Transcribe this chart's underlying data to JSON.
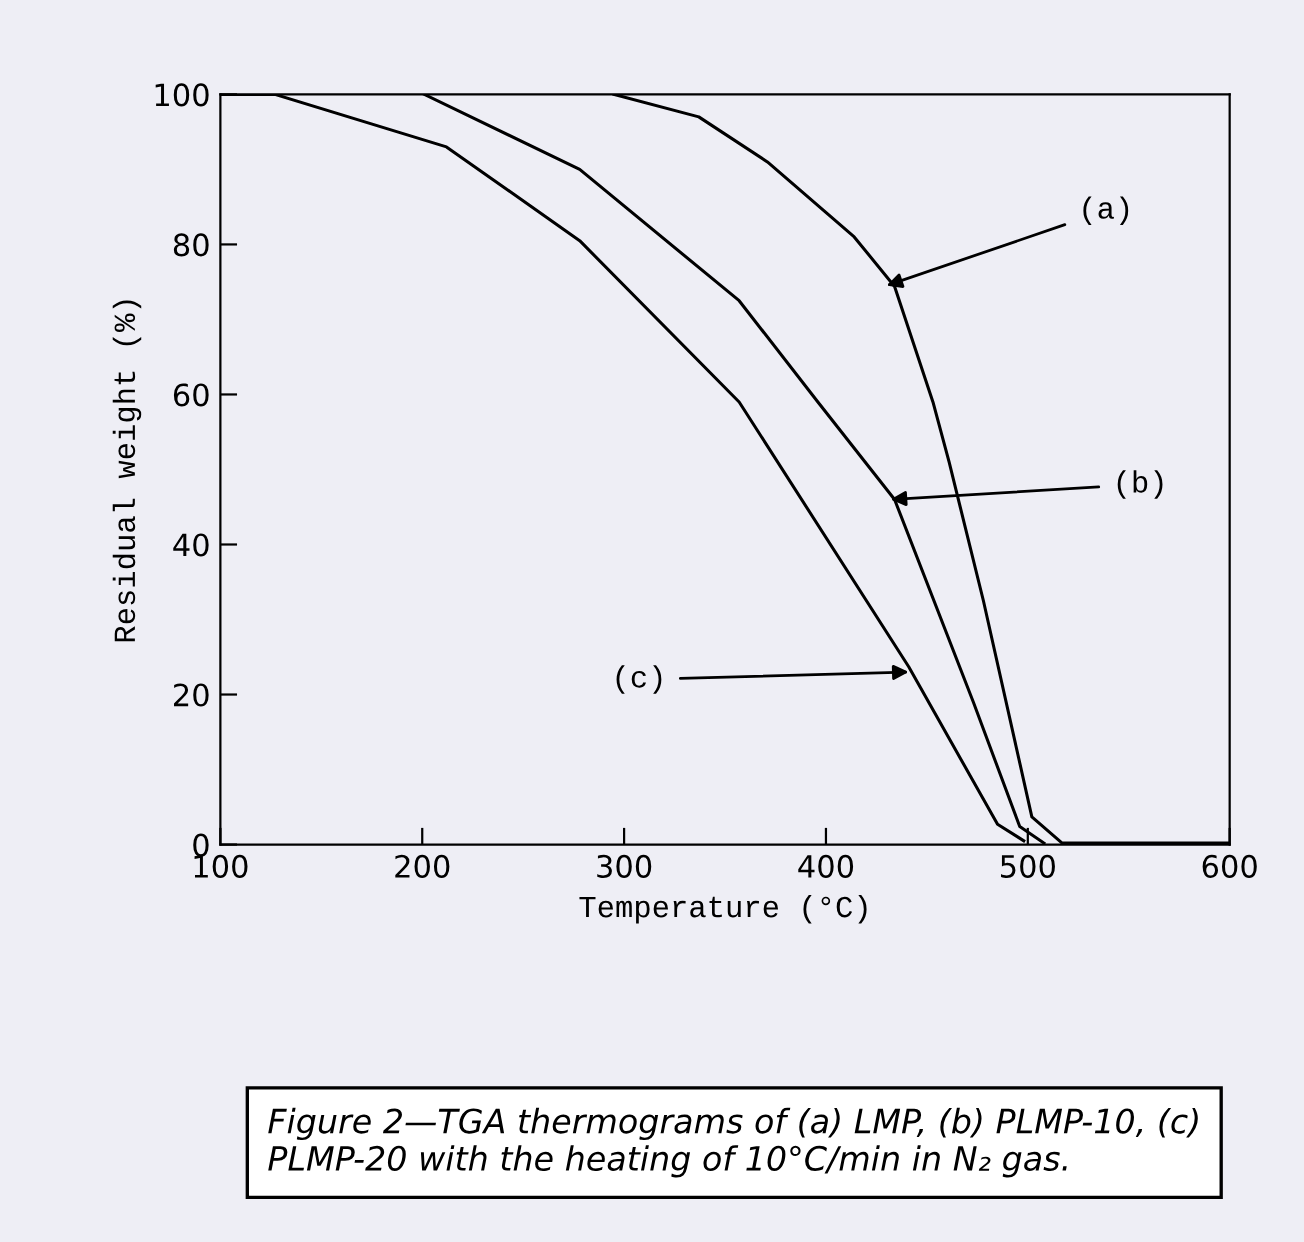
{
  "chart_data": {
    "type": "line",
    "xlabel": "Temperature (°C)",
    "ylabel": "Residual weight (%)",
    "xlim": [
      100,
      600
    ],
    "ylim": [
      0,
      100
    ],
    "xticks": [
      100,
      200,
      300,
      400,
      500,
      600
    ],
    "yticks": [
      0,
      20,
      40,
      60,
      80,
      100
    ],
    "grid": false,
    "legend": false,
    "marker": "none",
    "line_style": "solid",
    "series": [
      {
        "color": "#000000",
        "x": [
          295,
          337,
          371,
          414,
          434,
          453,
          461,
          478,
          502,
          517,
          600
        ],
        "values": [
          100,
          97,
          91,
          81,
          74.4,
          59,
          51,
          32.5,
          3.7,
          0.2,
          0.2
        ]
      },
      {
        "color": "#000000",
        "x": [
          201,
          278,
          357,
          396,
          434,
          473,
          496,
          508
        ],
        "values": [
          100,
          90,
          72.5,
          59,
          46,
          19,
          2.4,
          0.2
        ]
      },
      {
        "color": "#000000",
        "x": [
          100,
          127,
          212,
          278,
          357,
          441,
          485,
          498
        ],
        "values": [
          100,
          100,
          93,
          80.5,
          59,
          23.7,
          2.7,
          0.5
        ]
      }
    ],
    "annotations": [
      {
        "text": "(a)",
        "x": 430,
        "y": 74.5
      },
      {
        "text": "(b)",
        "x": 432,
        "y": 46
      },
      {
        "text": "(c)",
        "x": 441,
        "y": 23
      },
      "Figure 2—TGA thermograms of (a) LMP, (b) PLMP-10, (c) PLMP-20 with the heating of 10°C/min in N₂ gas."
    ]
  }
}
